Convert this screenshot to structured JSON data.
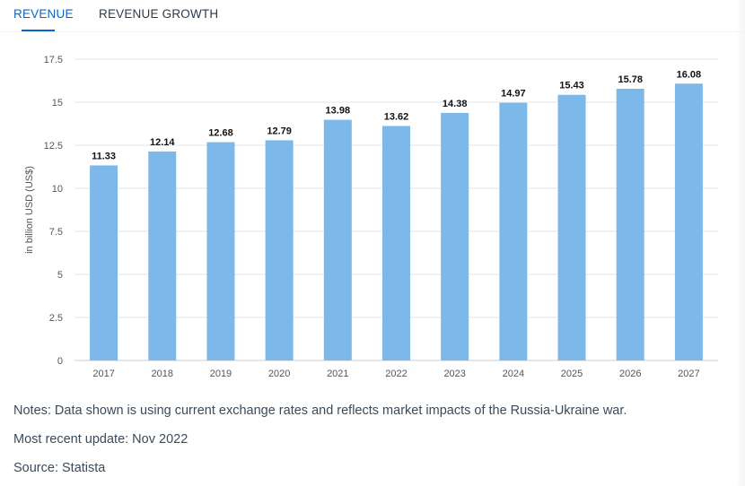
{
  "tabs": [
    {
      "label": "REVENUE",
      "active": true
    },
    {
      "label": "REVENUE GROWTH",
      "active": false
    }
  ],
  "notes": {
    "data_note": "Notes: Data shown is using current exchange rates and reflects market impacts of the Russia-Ukraine war.",
    "update": "Most recent update: Nov 2022",
    "source": "Source: Statista"
  },
  "colors": {
    "bar": "#7cb9ea",
    "accent": "#0a66c2",
    "grid": "#e6e6e6"
  },
  "chart_data": {
    "type": "bar",
    "categories": [
      "2017",
      "2018",
      "2019",
      "2020",
      "2021",
      "2022",
      "2023",
      "2024",
      "2025",
      "2026",
      "2027"
    ],
    "values": [
      11.33,
      12.14,
      12.68,
      12.79,
      13.98,
      13.62,
      14.38,
      14.97,
      15.43,
      15.78,
      16.08
    ],
    "value_labels": [
      "11.33",
      "12.14",
      "12.68",
      "12.79",
      "13.98",
      "13.62",
      "14.38",
      "14.97",
      "15.43",
      "15.78",
      "16.08"
    ],
    "ylabel": "in billion USD (US$)",
    "ylim": [
      0,
      17.5
    ],
    "yticks": [
      "0",
      "2.5",
      "5",
      "7.5",
      "10",
      "12.5",
      "15",
      "17.5"
    ],
    "grid": true
  }
}
